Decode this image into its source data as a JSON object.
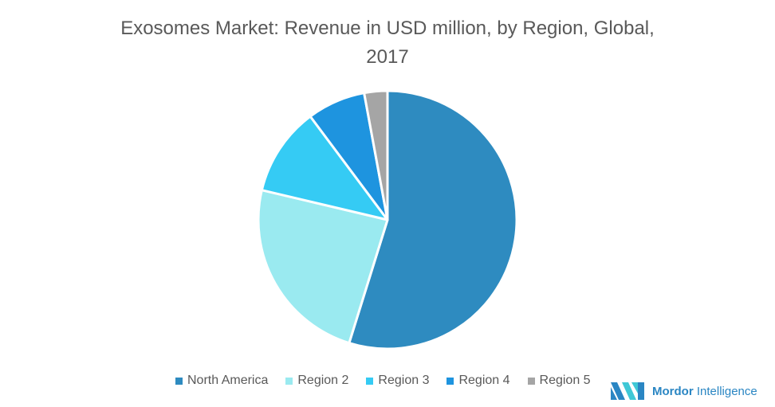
{
  "chart_data": {
    "type": "pie",
    "title": "Exosomes Market: Revenue in USD million, by Region, Global, 2017",
    "title_lines": [
      "Exosomes Market: Revenue in USD million, by Region, Global,",
      "2017"
    ],
    "categories": [
      "North America",
      "Region 2",
      "Region 3",
      "Region 4",
      "Region 5"
    ],
    "values": [
      54.8,
      23.9,
      11.1,
      7.3,
      2.9
    ],
    "unit": "approx. % share (estimated from slice angles)",
    "colors": [
      "#2e8bc0",
      "#9aeaf0",
      "#35cbf4",
      "#1e94df",
      "#a5a5a5"
    ],
    "start_angle_deg": 0,
    "direction": "clockwise",
    "legend_position": "bottom",
    "data_labels": false
  },
  "legend": {
    "items": [
      {
        "label": "North America",
        "color": "#2e8bc0"
      },
      {
        "label": "Region 2",
        "color": "#9aeaf0"
      },
      {
        "label": "Region 3",
        "color": "#35cbf4"
      },
      {
        "label": "Region 4",
        "color": "#1e94df"
      },
      {
        "label": "Region 5",
        "color": "#a5a5a5"
      }
    ]
  },
  "branding": {
    "logo_bold": "Mordor",
    "logo_rest": " Intelligence"
  }
}
